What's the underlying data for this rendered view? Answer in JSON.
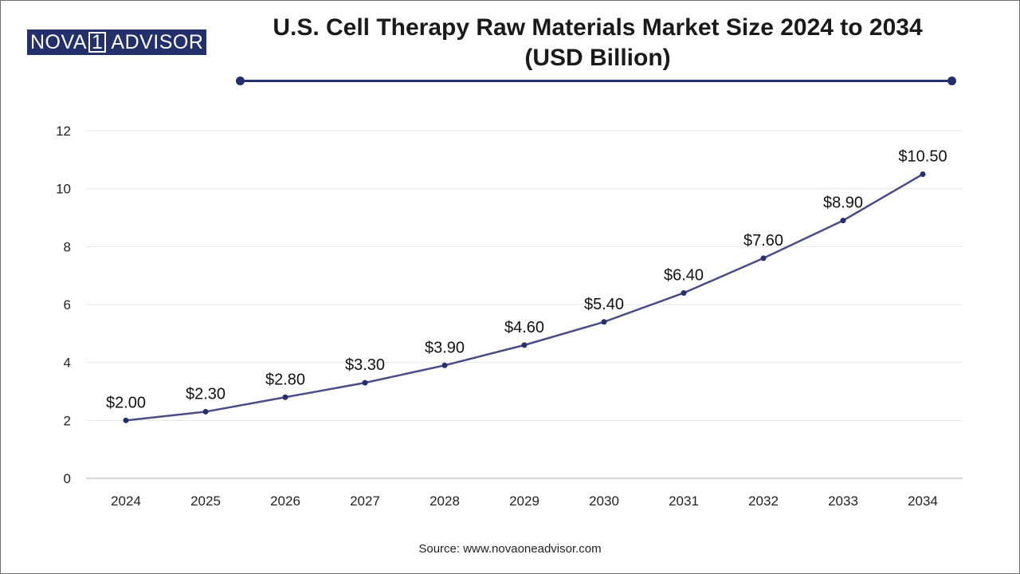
{
  "logo": {
    "part1": "NOVA",
    "part2": "1",
    "part3": "ADVISOR"
  },
  "title": {
    "line1": "U.S. Cell Therapy Raw Materials Market Size 2024 to 2034",
    "line2": "(USD Billion)"
  },
  "source": "Source: www.novaoneadvisor.com",
  "colors": {
    "line": "#4b4b86",
    "marker": "#23306b",
    "accent": "#23306b",
    "grid": "#e6e6e6"
  },
  "chart_data": {
    "type": "line",
    "title": "U.S. Cell Therapy Raw Materials Market Size 2024 to 2034 (USD Billion)",
    "xlabel": "",
    "ylabel": "",
    "categories": [
      "2024",
      "2025",
      "2026",
      "2027",
      "2028",
      "2029",
      "2030",
      "2031",
      "2032",
      "2033",
      "2034"
    ],
    "values": [
      2.0,
      2.3,
      2.8,
      3.3,
      3.9,
      4.6,
      5.4,
      6.4,
      7.6,
      8.9,
      10.5
    ],
    "data_labels": [
      "$2.00",
      "$2.30",
      "$2.80",
      "$3.30",
      "$3.90",
      "$4.60",
      "$5.40",
      "$6.40",
      "$7.60",
      "$8.90",
      "$10.50"
    ],
    "ylim": [
      0,
      12
    ],
    "yticks": [
      0,
      2,
      4,
      6,
      8,
      10,
      12
    ],
    "grid": true,
    "legend": "none"
  }
}
